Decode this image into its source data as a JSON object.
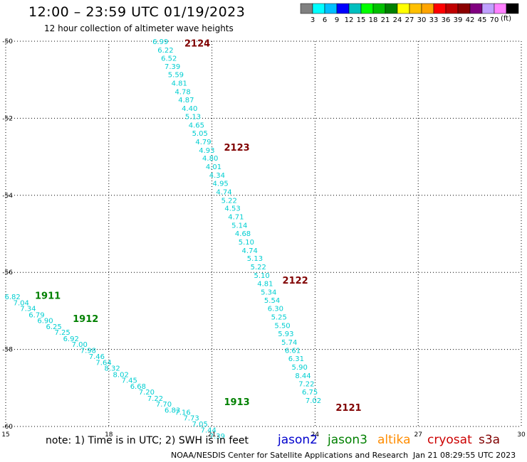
{
  "header": {
    "title": "12:00 – 23:59 UTC 01/19/2023",
    "subtitle": "12 hour collection of altimeter wave heights"
  },
  "colorbar": {
    "colors": [
      "#808080",
      "#00ffff",
      "#00bfff",
      "#0000ff",
      "#00bfbf",
      "#00ff00",
      "#00c000",
      "#008000",
      "#ffff00",
      "#ffc000",
      "#ffa500",
      "#ff0000",
      "#c00000",
      "#8b0000",
      "#800080",
      "#c0a0ff",
      "#ff80ff",
      "#000000"
    ],
    "labels": [
      "3",
      "6",
      "9",
      "12",
      "15",
      "18",
      "21",
      "24",
      "27",
      "30",
      "33",
      "36",
      "39",
      "42",
      "45",
      "70"
    ],
    "unit": "(ft)"
  },
  "chart_data": {
    "type": "scatter",
    "xlim": [
      15,
      30
    ],
    "ylim": [
      -60,
      -50
    ],
    "xticks": [
      "15",
      "18",
      "21",
      "24",
      "27",
      "30"
    ],
    "yticks": [
      "-50",
      "-52",
      "-54",
      "-56",
      "-58",
      "-60"
    ],
    "grid": true,
    "point_color": "#00ced1",
    "tracks": [
      {
        "label": "2124",
        "label_x": 20.2,
        "label_y": -50.05,
        "color": "#800000",
        "points": [
          [
            19.5,
            -50.0,
            "6.99"
          ],
          [
            19.65,
            -50.22,
            "6.22"
          ],
          [
            19.75,
            -50.43,
            "6.52"
          ],
          [
            19.85,
            -50.65,
            "7.39"
          ],
          [
            19.95,
            -50.86,
            "5.59"
          ],
          [
            20.05,
            -51.08,
            "4.81"
          ],
          [
            20.15,
            -51.3,
            "4.78"
          ],
          [
            20.25,
            -51.51,
            "4.87"
          ],
          [
            20.35,
            -51.73,
            "4.40"
          ],
          [
            20.45,
            -51.95,
            "5.13"
          ],
          [
            20.55,
            -52.17,
            "4.65"
          ],
          [
            20.65,
            -52.38,
            "5.05"
          ],
          [
            20.75,
            -52.6,
            "4.79"
          ],
          [
            20.85,
            -52.82,
            "4.93"
          ],
          [
            20.95,
            -53.03,
            "4.80"
          ],
          [
            21.05,
            -53.25,
            "4.01"
          ],
          [
            21.15,
            -53.47,
            "4.34"
          ],
          [
            21.25,
            -53.68,
            "4.95"
          ],
          [
            21.35,
            -53.9,
            "4.74"
          ],
          [
            21.5,
            -54.12,
            "5.22"
          ],
          [
            21.6,
            -54.33,
            "4.53"
          ],
          [
            21.7,
            -54.55,
            "4.71"
          ],
          [
            21.8,
            -54.77,
            "5.14"
          ],
          [
            21.9,
            -54.98,
            "4.68"
          ],
          [
            22.0,
            -55.2,
            "5.10"
          ],
          [
            22.1,
            -55.42,
            "4.74"
          ],
          [
            22.25,
            -55.63,
            "5.13"
          ],
          [
            22.35,
            -55.85,
            "5.22"
          ],
          [
            22.45,
            -56.07,
            "5.10"
          ],
          [
            22.55,
            -56.28,
            "4.81"
          ],
          [
            22.65,
            -56.5,
            "5.34"
          ],
          [
            22.75,
            -56.72,
            "5.54"
          ],
          [
            22.85,
            -56.93,
            "6.30"
          ],
          [
            22.95,
            -57.15,
            "5.25"
          ],
          [
            23.05,
            -57.37,
            "5.50"
          ],
          [
            23.15,
            -57.58,
            "5.93"
          ],
          [
            23.25,
            -57.8,
            "5.74"
          ],
          [
            23.35,
            -58.02,
            "6.61"
          ],
          [
            23.45,
            -58.23,
            "6.31"
          ],
          [
            23.55,
            -58.45,
            "5.90"
          ],
          [
            23.65,
            -58.67,
            "8.44"
          ],
          [
            23.75,
            -58.88,
            "7.22"
          ],
          [
            23.85,
            -59.1,
            "6.75"
          ],
          [
            23.95,
            -59.32,
            "7.02"
          ]
        ]
      },
      {
        "label": "2123",
        "label_x": 21.35,
        "label_y": -52.75,
        "color": "#800000",
        "points": []
      },
      {
        "label": "2122",
        "label_x": 23.05,
        "label_y": -56.2,
        "color": "#800000",
        "points": []
      },
      {
        "label": "2121",
        "label_x": 24.6,
        "label_y": -59.5,
        "color": "#800000",
        "points": []
      },
      {
        "label": "1911",
        "label_x": 15.85,
        "label_y": -56.6,
        "color": "#008000",
        "points": [
          [
            15.2,
            -56.62,
            "6.82"
          ],
          [
            15.45,
            -56.78,
            "7.04"
          ],
          [
            15.65,
            -56.93,
            "7.34"
          ],
          [
            15.9,
            -57.09,
            "6.79"
          ],
          [
            16.15,
            -57.24,
            "6.90"
          ],
          [
            16.4,
            -57.4,
            "6.25"
          ],
          [
            16.65,
            -57.55,
            "7.25"
          ],
          [
            16.9,
            -57.71,
            "6.92"
          ],
          [
            17.15,
            -57.86,
            "7.00"
          ],
          [
            17.4,
            -58.02,
            "7.98"
          ],
          [
            17.65,
            -58.17,
            "7.46"
          ],
          [
            17.85,
            -58.33,
            "7.64"
          ],
          [
            18.1,
            -58.48,
            "8.32"
          ],
          [
            18.35,
            -58.64,
            "8.02"
          ],
          [
            18.6,
            -58.79,
            "7.45"
          ],
          [
            18.85,
            -58.95,
            "6.68"
          ],
          [
            19.1,
            -59.1,
            "7.20"
          ],
          [
            19.35,
            -59.26,
            "7.22"
          ],
          [
            19.6,
            -59.41,
            "7.70"
          ],
          [
            19.85,
            -59.57,
            "6.83"
          ]
        ]
      },
      {
        "label": "1912",
        "label_x": 16.95,
        "label_y": -57.2,
        "color": "#008000",
        "points": []
      },
      {
        "label": "1913",
        "label_x": 21.35,
        "label_y": -59.35,
        "color": "#008000",
        "points": [
          [
            20.15,
            -59.62,
            "7.16"
          ],
          [
            20.4,
            -59.77,
            "7.73"
          ],
          [
            20.65,
            -59.93,
            "7.05"
          ],
          [
            20.9,
            -60.08,
            "7.44"
          ],
          [
            21.15,
            -60.24,
            "7.39"
          ]
        ]
      }
    ]
  },
  "note": "note:  1) Time is in UTC;  2) SWH is in feet",
  "satellites": [
    {
      "name": "jason2",
      "color": "#0000cd"
    },
    {
      "name": "jason3",
      "color": "#008000"
    },
    {
      "name": "altika",
      "color": "#ff8c00"
    },
    {
      "name": "cryosat",
      "color": "#cc0000"
    },
    {
      "name": "s3a",
      "color": "#800000"
    }
  ],
  "footer": {
    "source": "NOAA/NESDIS Center for Satellite Applications and Research",
    "timestamp": "Jan 21 08:29:55 UTC 2023"
  }
}
